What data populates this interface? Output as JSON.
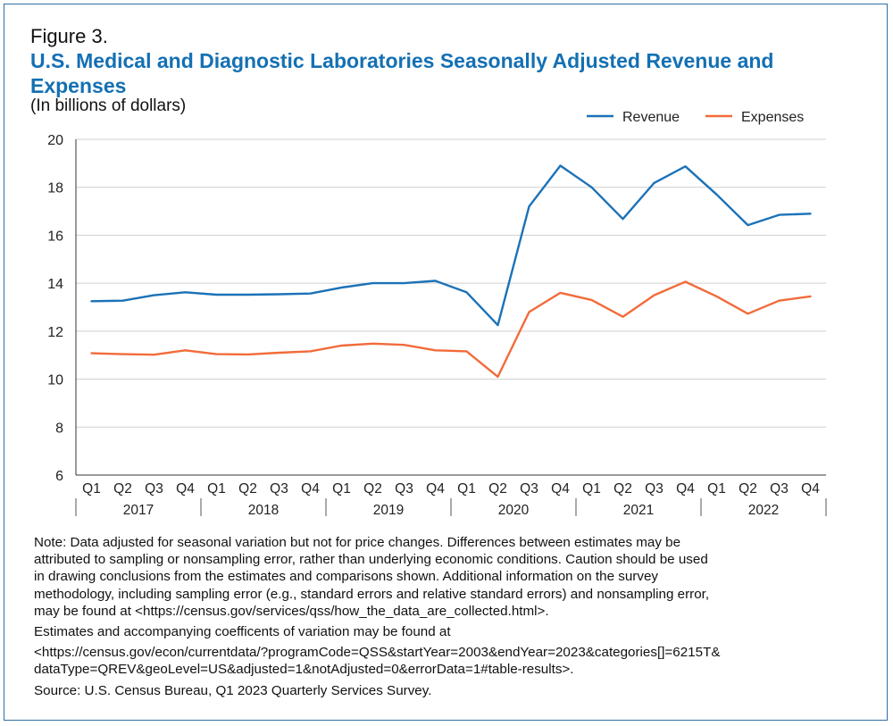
{
  "figure": {
    "label": "Figure 3.",
    "title": "U.S. Medical and Diagnostic Laboratories Seasonally Adjusted Revenue and Expenses",
    "subtitle": "(In billions of dollars)"
  },
  "chart_data": {
    "type": "line",
    "x": [
      "Q1",
      "Q2",
      "Q3",
      "Q4",
      "Q1",
      "Q2",
      "Q3",
      "Q4",
      "Q1",
      "Q2",
      "Q3",
      "Q4",
      "Q1",
      "Q2",
      "Q3",
      "Q4",
      "Q1",
      "Q2",
      "Q3",
      "Q4",
      "Q1",
      "Q2",
      "Q3",
      "Q4"
    ],
    "year_groups": [
      "2017",
      "2018",
      "2019",
      "2020",
      "2021",
      "2022"
    ],
    "ylim": [
      6,
      20
    ],
    "yticks": [
      6,
      8,
      10,
      12,
      14,
      16,
      18,
      20
    ],
    "grid": true,
    "legend_position": "top-right",
    "series": [
      {
        "name": "Revenue",
        "color": "#1b72b8",
        "values": [
          13.25,
          13.27,
          13.5,
          13.62,
          13.52,
          13.52,
          13.54,
          13.57,
          13.82,
          14.0,
          14.0,
          14.1,
          13.62,
          12.25,
          17.2,
          18.9,
          18.0,
          16.68,
          18.18,
          18.87,
          17.7,
          16.42,
          16.85,
          16.9
        ]
      },
      {
        "name": "Expenses",
        "color": "#f26b3a",
        "values": [
          11.08,
          11.04,
          11.02,
          11.2,
          11.04,
          11.03,
          11.1,
          11.16,
          11.4,
          11.48,
          11.43,
          11.2,
          11.16,
          10.1,
          12.8,
          13.6,
          13.3,
          12.6,
          13.5,
          14.06,
          13.45,
          12.73,
          13.27,
          13.45
        ]
      }
    ]
  },
  "notes": {
    "note_lines": [
      "Note: Data adjusted for seasonal variation but not for price changes. Differences between estimates may be",
      "attributed to sampling or nonsampling error, rather than underlying economic conditions. Caution should be used",
      "in drawing conclusions from the estimates and comparisons shown. Additional information on the survey",
      "methodology, including sampling error (e.g., standard errors and relative standard errors) and nonsampling error,",
      "may be found at <https://census.gov/services/qss/how_the_data_are_collected.html>."
    ],
    "estimates_line": "Estimates and accompanying coefficents of variation may be found at",
    "url_lines": [
      "<https://census.gov/econ/currentdata/?programCode=QSS&startYear=2003&endYear=2023&categories[]=6215T&",
      "dataType=QREV&geoLevel=US&adjusted=1&notAdjusted=0&errorData=1#table-results>."
    ],
    "source": "Source: U.S. Census Bureau, Q1 2023 Quarterly Services Survey."
  }
}
